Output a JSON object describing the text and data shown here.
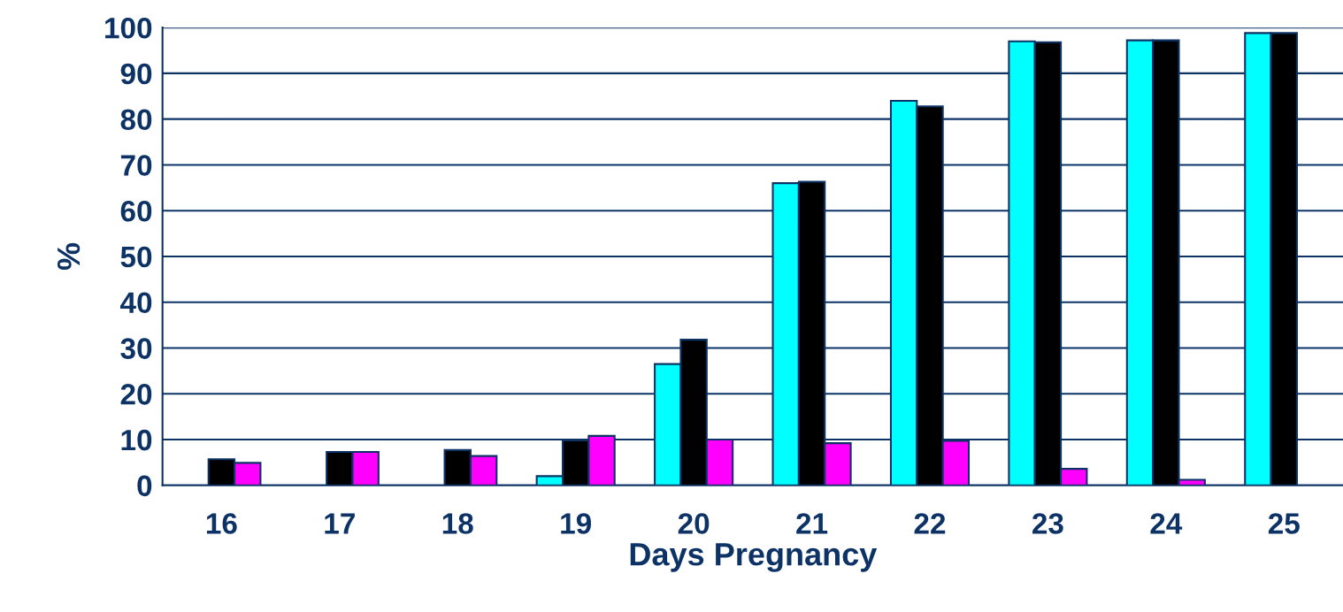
{
  "chart_data": {
    "type": "bar",
    "xlabel": "Days Pregnancy",
    "ylabel": "%",
    "categories": [
      "16",
      "17",
      "18",
      "19",
      "20",
      "21",
      "22",
      "23",
      "24",
      "25"
    ],
    "series": [
      {
        "color": "#00ffff",
        "values": [
          null,
          null,
          null,
          2,
          26.5,
          66,
          84,
          97,
          97.2,
          98.8
        ]
      },
      {
        "color": "#000000",
        "values": [
          5.7,
          7.3,
          7.7,
          9.8,
          31.8,
          66.3,
          82.8,
          96.8,
          97.2,
          98.8
        ]
      },
      {
        "color": "#ff00ff",
        "values": [
          4.9,
          7.3,
          6.4,
          10.8,
          10,
          9.2,
          9.7,
          3.6,
          1.2,
          null
        ]
      }
    ],
    "ylim": [
      0,
      100
    ],
    "yticks": [
      0,
      10,
      20,
      30,
      40,
      50,
      60,
      70,
      80,
      90,
      100
    ],
    "grid": "y"
  }
}
